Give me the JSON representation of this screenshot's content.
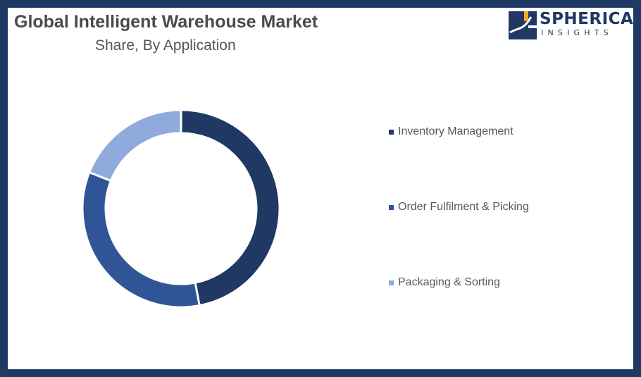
{
  "header": {
    "title": "Global Intelligent Warehouse Market",
    "subtitle": "Share, By Application"
  },
  "logo": {
    "name": "SPHERICAL",
    "tagline": "INSIGHTS"
  },
  "colors": {
    "frame": "#1f3864",
    "accent": "#f5a623"
  },
  "chart_data": {
    "type": "pie",
    "donut": true,
    "categories": [
      "Inventory Management",
      "Order Fulfilment & Picking",
      "Packaging & Sorting"
    ],
    "values": [
      47,
      34,
      19
    ],
    "colors": [
      "#1f3864",
      "#2f5597",
      "#8faadc"
    ],
    "legend_position": "right"
  }
}
